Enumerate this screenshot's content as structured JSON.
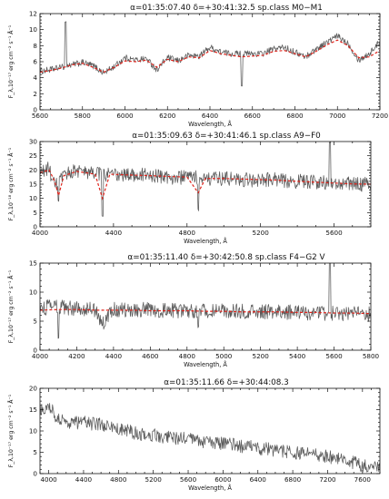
{
  "chart_data": [
    {
      "type": "line",
      "title": "α=01:35:07.40  δ=+30:41:32.5     sp.class  M0−M1",
      "xlabel": "Wavelength, Å",
      "ylabel": "F_λ,10⁻¹⁷ erg cm⁻² s⁻¹ Å⁻¹",
      "xlim": [
        5600,
        7200
      ],
      "ylim": [
        0,
        12
      ],
      "xticks": [
        5600,
        5800,
        6000,
        6200,
        6400,
        6600,
        6800,
        7000,
        7200
      ],
      "yticks": [
        0,
        2,
        4,
        6,
        8,
        10,
        12
      ],
      "series": [
        {
          "color": "#5a5a5a",
          "style": "noisy",
          "noise": 0.4,
          "x": [
            5600,
            5650,
            5700,
            5720,
            5750,
            5800,
            5850,
            5900,
            5950,
            6000,
            6050,
            6100,
            6150,
            6200,
            6250,
            6300,
            6350,
            6400,
            6450,
            6500,
            6550,
            6600,
            6650,
            6700,
            6750,
            6800,
            6850,
            6900,
            6950,
            7000,
            7050,
            7100,
            7150,
            7200
          ],
          "y": [
            4.8,
            5.0,
            5.3,
            11.0,
            5.7,
            5.9,
            5.5,
            4.6,
            5.4,
            6.5,
            6.2,
            6.4,
            5.0,
            6.5,
            6.1,
            6.8,
            6.7,
            7.8,
            7.2,
            7.0,
            3.0,
            7.0,
            7.0,
            7.6,
            7.8,
            7.2,
            6.6,
            7.6,
            8.4,
            9.2,
            8.3,
            6.2,
            7.0,
            8.5
          ]
        },
        {
          "color": "#e0231b",
          "style": "dashed",
          "x": [
            5600,
            5650,
            5700,
            5750,
            5800,
            5850,
            5900,
            5950,
            6000,
            6050,
            6100,
            6150,
            6200,
            6250,
            6300,
            6350,
            6400,
            6450,
            6500,
            6550,
            6600,
            6650,
            6700,
            6750,
            6800,
            6850,
            6900,
            6950,
            7000,
            7050,
            7100,
            7150,
            7200
          ],
          "y": [
            4.7,
            4.9,
            5.2,
            5.6,
            5.8,
            5.3,
            4.7,
            5.3,
            6.1,
            6.0,
            6.2,
            5.3,
            6.3,
            6.0,
            6.6,
            6.5,
            7.4,
            7.0,
            6.8,
            6.6,
            6.7,
            6.8,
            7.3,
            7.4,
            7.0,
            6.6,
            7.3,
            8.1,
            8.7,
            8.0,
            6.5,
            6.6,
            7.4
          ]
        }
      ]
    },
    {
      "type": "line",
      "title": "α=01:35:09.63  δ=+30:41:46.1     sp.class  A9−F0",
      "xlabel": "Wavelength, Å",
      "ylabel": "F_λ,10⁻¹⁸ erg cm⁻² s⁻¹ Å⁻¹",
      "xlim": [
        4000,
        5800
      ],
      "ylim": [
        0,
        30
      ],
      "xticks": [
        4000,
        4400,
        4800,
        5200,
        5600
      ],
      "yticks": [
        0,
        5,
        10,
        15,
        20,
        25,
        30
      ],
      "series": [
        {
          "color": "#5a5a5a",
          "style": "noisy",
          "noise": 2.6,
          "x": [
            4000,
            4050,
            4080,
            4101,
            4150,
            4200,
            4250,
            4300,
            4340,
            4380,
            4450,
            4500,
            4600,
            4700,
            4800,
            4861,
            4900,
            5000,
            5100,
            5200,
            5300,
            5400,
            5500,
            5577,
            5600,
            5700,
            5800
          ],
          "y": [
            19.0,
            20.5,
            14.0,
            9.0,
            19.0,
            20.0,
            19.0,
            18.5,
            4.0,
            19.0,
            18.0,
            18.5,
            18.0,
            17.5,
            17.5,
            6.0,
            17.0,
            17.0,
            16.5,
            16.5,
            16.5,
            16.0,
            16.0,
            30.0,
            15.5,
            15.0,
            15.0
          ]
        },
        {
          "color": "#e0231b",
          "style": "dashed",
          "x": [
            4000,
            4050,
            4080,
            4101,
            4130,
            4200,
            4300,
            4340,
            4380,
            4500,
            4600,
            4700,
            4800,
            4861,
            4900,
            5000,
            5100,
            5200,
            5300,
            5400,
            5500,
            5600,
            5700,
            5800
          ],
          "y": [
            19.0,
            20.0,
            16.0,
            11.0,
            18.0,
            19.5,
            18.5,
            10.0,
            18.5,
            18.2,
            18.0,
            17.7,
            17.5,
            12.0,
            17.0,
            17.0,
            16.8,
            16.6,
            16.4,
            16.0,
            15.7,
            15.4,
            15.1,
            15.0
          ]
        }
      ]
    },
    {
      "type": "line",
      "title": "α=01:35:11.40  δ=+30:42:50.8     sp.class  F4−G2 V",
      "xlabel": "Wavelength, Å",
      "ylabel": "F_λ,10⁻¹⁷ erg cm⁻² s⁻¹ Å⁻¹",
      "xlim": [
        4000,
        5800
      ],
      "ylim": [
        0,
        15
      ],
      "xticks": [
        4000,
        4200,
        4400,
        4600,
        4800,
        5000,
        5200,
        5400,
        5600,
        5800
      ],
      "yticks": [
        0,
        5,
        10,
        15
      ],
      "series": [
        {
          "color": "#5a5a5a",
          "style": "noisy",
          "noise": 1.3,
          "x": [
            4000,
            4050,
            4100,
            4101,
            4150,
            4200,
            4300,
            4340,
            4400,
            4500,
            4600,
            4700,
            4800,
            4861,
            4900,
            5000,
            5100,
            5200,
            5300,
            5400,
            5500,
            5577,
            5600,
            5700,
            5800
          ],
          "y": [
            7.0,
            7.5,
            8.0,
            2.0,
            7.5,
            7.2,
            7.0,
            4.5,
            7.0,
            7.0,
            7.0,
            6.8,
            6.8,
            4.0,
            6.8,
            6.7,
            6.7,
            6.6,
            6.6,
            6.5,
            6.5,
            15.0,
            6.4,
            6.3,
            6.2
          ]
        },
        {
          "color": "#e0231b",
          "style": "dashed",
          "x": [
            4000,
            4100,
            4200,
            4300,
            4400,
            4500,
            4600,
            4700,
            4800,
            4900,
            5000,
            5100,
            5200,
            5300,
            5400,
            5500,
            5600,
            5700,
            5800
          ],
          "y": [
            6.9,
            7.0,
            7.0,
            6.9,
            6.9,
            6.9,
            6.8,
            6.8,
            6.8,
            6.7,
            6.7,
            6.6,
            6.6,
            6.6,
            6.5,
            6.5,
            6.4,
            6.4,
            6.3
          ]
        }
      ]
    },
    {
      "type": "line",
      "title": "α=01:35:11.66  δ=+30:44:08.3",
      "xlabel": "Wavelength, Å",
      "ylabel": "F_λ,10⁻¹⁷ erg cm⁻² s⁻¹ Å⁻¹",
      "xlim": [
        3900,
        7800
      ],
      "ylim": [
        0,
        20
      ],
      "xticks": [
        4000,
        4400,
        4800,
        5200,
        5600,
        6000,
        6400,
        6800,
        7200,
        7600
      ],
      "yticks": [
        0,
        5,
        10,
        15,
        20
      ],
      "series": [
        {
          "color": "#5a5a5a",
          "style": "noisy",
          "noise": 1.6,
          "x": [
            3900,
            4000,
            4100,
            4200,
            4400,
            4600,
            4800,
            5000,
            5200,
            5400,
            5600,
            5800,
            6000,
            6200,
            6400,
            6600,
            6800,
            7000,
            7200,
            7400,
            7600,
            7800
          ],
          "y": [
            15.0,
            16.0,
            13.0,
            12.0,
            12.0,
            11.5,
            10.5,
            9.5,
            9.0,
            8.5,
            8.0,
            7.5,
            7.0,
            6.5,
            6.0,
            5.5,
            5.0,
            4.5,
            4.0,
            3.0,
            2.0,
            1.5
          ]
        }
      ]
    }
  ]
}
